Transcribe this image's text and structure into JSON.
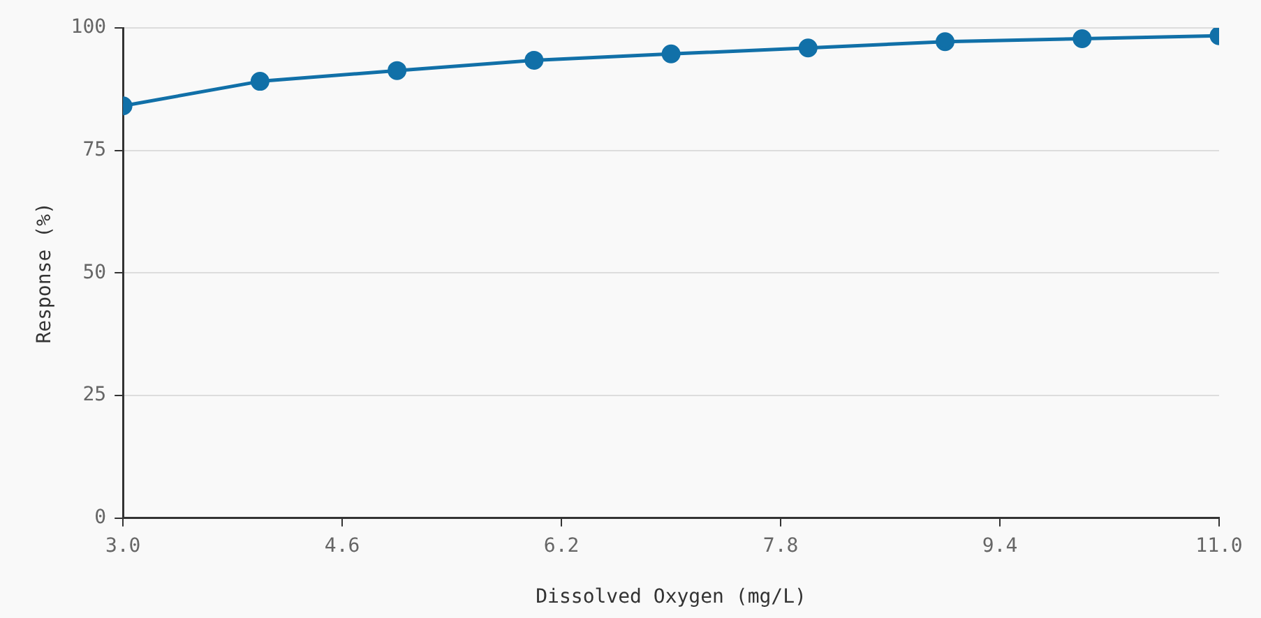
{
  "chart_data": {
    "type": "line",
    "xlabel": "Dissolved Oxygen (mg/L)",
    "ylabel": "Response (%)",
    "x": [
      3,
      4,
      5,
      6,
      7,
      8,
      9,
      10,
      11
    ],
    "series": [
      {
        "color": "#1170a8",
        "values": [
          84.1,
          89.1,
          91.3,
          93.4,
          94.7,
          95.9,
          97.2,
          97.8,
          98.4
        ]
      }
    ],
    "xlim": [
      3,
      11
    ],
    "xticks": [
      {
        "value": 3,
        "label": "3.0"
      },
      {
        "value": 4.6,
        "label": "4.6"
      },
      {
        "value": 6.2,
        "label": "6.2"
      },
      {
        "value": 7.8,
        "label": "7.8"
      },
      {
        "value": 9.4,
        "label": "9.4"
      },
      {
        "value": 11,
        "label": "11.0"
      }
    ],
    "ylim": [
      0,
      100
    ],
    "yticks": [
      0,
      25,
      50,
      75,
      100
    ],
    "grid": "y",
    "legend": false,
    "marker": "circle",
    "line_style": "solid"
  }
}
